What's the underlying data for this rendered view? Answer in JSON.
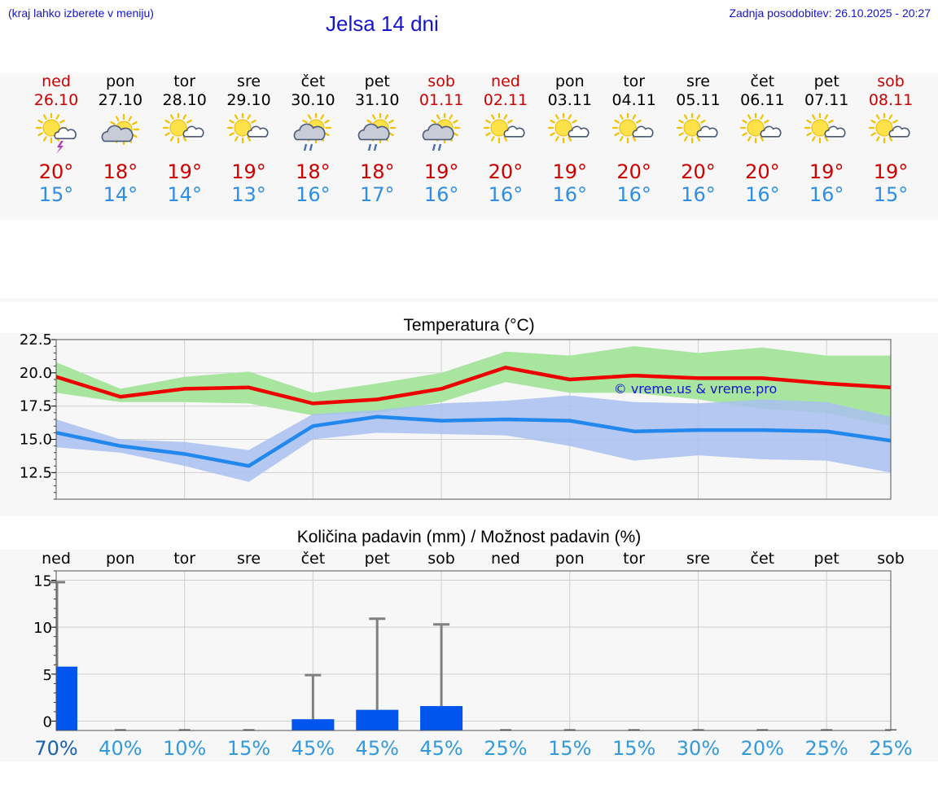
{
  "header": {
    "note": "(kraj lahko izberete v meniju)",
    "title": "Jelsa 14 dni",
    "update": "Zadnja posodobitev: 26.10.2025 - 20:27"
  },
  "colors": {
    "max_line": "#ee0000",
    "min_line": "#2288ee",
    "max_band": "#a8e6a0",
    "min_band": "#a8bff0",
    "bar": "#0055ee",
    "weekend_text": "#cc0000",
    "max_text": "#cc0000",
    "min_text": "#2e8ee6"
  },
  "days": [
    {
      "name": "ned",
      "date": "26.10",
      "icon": "sun-cloud-thunder-icon",
      "max": "20°",
      "min": "15°",
      "weekend": true
    },
    {
      "name": "pon",
      "date": "27.10",
      "icon": "sun-behind-cloud-icon",
      "max": "18°",
      "min": "14°",
      "weekend": false
    },
    {
      "name": "tor",
      "date": "28.10",
      "icon": "sun-small-cloud-icon",
      "max": "19°",
      "min": "14°",
      "weekend": false
    },
    {
      "name": "sre",
      "date": "29.10",
      "icon": "sun-small-cloud-icon",
      "max": "19°",
      "min": "13°",
      "weekend": false
    },
    {
      "name": "čet",
      "date": "30.10",
      "icon": "sun-cloud-rain-icon",
      "max": "18°",
      "min": "16°",
      "weekend": false
    },
    {
      "name": "pet",
      "date": "31.10",
      "icon": "sun-cloud-rain-icon",
      "max": "18°",
      "min": "17°",
      "weekend": false
    },
    {
      "name": "sob",
      "date": "01.11",
      "icon": "sun-cloud-rain-icon",
      "max": "19°",
      "min": "16°",
      "weekend": true
    },
    {
      "name": "ned",
      "date": "02.11",
      "icon": "sun-small-cloud-icon",
      "max": "20°",
      "min": "16°",
      "weekend": true
    },
    {
      "name": "pon",
      "date": "03.11",
      "icon": "sun-small-cloud-icon",
      "max": "19°",
      "min": "16°",
      "weekend": false
    },
    {
      "name": "tor",
      "date": "04.11",
      "icon": "sun-small-cloud-icon",
      "max": "20°",
      "min": "16°",
      "weekend": false
    },
    {
      "name": "sre",
      "date": "05.11",
      "icon": "sun-small-cloud-icon",
      "max": "20°",
      "min": "16°",
      "weekend": false
    },
    {
      "name": "čet",
      "date": "06.11",
      "icon": "sun-small-cloud-icon",
      "max": "20°",
      "min": "16°",
      "weekend": false
    },
    {
      "name": "pet",
      "date": "07.11",
      "icon": "sun-small-cloud-icon",
      "max": "19°",
      "min": "16°",
      "weekend": false
    },
    {
      "name": "sob",
      "date": "08.11",
      "icon": "sun-small-cloud-icon",
      "max": "19°",
      "min": "15°",
      "weekend": true
    }
  ],
  "chart_data": [
    {
      "type": "line",
      "title": "Temperatura (°C)",
      "watermark": "© vreme.us & vreme.pro",
      "ylim": [
        10.5,
        22.5
      ],
      "yticks": [
        "22.5",
        "20.0",
        "17.5",
        "15.0",
        "12.5"
      ],
      "ytick_values": [
        22.5,
        20.0,
        17.5,
        15.0,
        12.5
      ],
      "x": [
        0,
        1,
        2,
        3,
        4,
        5,
        6,
        7,
        8,
        9,
        10,
        11,
        12,
        13
      ],
      "series": [
        {
          "name": "max",
          "values": [
            19.7,
            18.2,
            18.8,
            18.9,
            17.7,
            18.0,
            18.8,
            20.4,
            19.5,
            19.8,
            19.6,
            19.6,
            19.2,
            18.9
          ],
          "band_low": [
            18.5,
            17.8,
            17.8,
            17.7,
            16.8,
            17.0,
            17.8,
            19.3,
            18.5,
            18.5,
            18.0,
            17.3,
            17.0,
            16.0
          ],
          "band_high": [
            20.8,
            18.8,
            19.7,
            20.1,
            18.5,
            19.2,
            20.0,
            21.6,
            21.3,
            22.0,
            21.5,
            21.9,
            21.3,
            21.3
          ]
        },
        {
          "name": "min",
          "values": [
            15.5,
            14.5,
            13.9,
            13.0,
            16.0,
            16.7,
            16.4,
            16.5,
            16.4,
            15.6,
            15.7,
            15.7,
            15.6,
            14.9
          ],
          "band_low": [
            14.4,
            14.0,
            13.0,
            11.8,
            15.0,
            15.5,
            15.4,
            15.3,
            14.5,
            13.4,
            13.8,
            13.5,
            13.4,
            12.5
          ],
          "band_high": [
            16.5,
            15.0,
            14.8,
            14.2,
            16.9,
            17.2,
            17.7,
            17.9,
            18.3,
            17.8,
            17.7,
            18.0,
            17.8,
            16.7
          ]
        }
      ]
    },
    {
      "type": "bar",
      "title": "Količina padavin (mm) / Možnost padavin (%)",
      "categories": [
        "ned",
        "pon",
        "tor",
        "sre",
        "čet",
        "pet",
        "sob",
        "ned",
        "pon",
        "tor",
        "sre",
        "čet",
        "pet",
        "sob"
      ],
      "ylim": [
        -1,
        16
      ],
      "yticks": [
        "15",
        "10",
        "5",
        "0"
      ],
      "ytick_values": [
        15,
        10,
        5,
        0
      ],
      "values": [
        5.8,
        0,
        0,
        0,
        0.2,
        1.2,
        1.6,
        0,
        0,
        0,
        0,
        0,
        0,
        0
      ],
      "error_high": [
        14.8,
        0,
        0,
        0,
        4.9,
        10.9,
        10.3,
        0,
        0,
        0,
        0,
        0,
        0,
        0
      ],
      "probability": [
        "70%",
        "40%",
        "10%",
        "15%",
        "45%",
        "45%",
        "45%",
        "25%",
        "15%",
        "15%",
        "30%",
        "20%",
        "25%",
        "25%"
      ],
      "probability_colors": [
        "#1a60b0",
        "#3399dd",
        "#3399dd",
        "#3399dd",
        "#3399dd",
        "#3399dd",
        "#3399dd",
        "#3399dd",
        "#3399dd",
        "#3399dd",
        "#3399dd",
        "#3399dd",
        "#3399dd",
        "#3399dd"
      ]
    }
  ]
}
